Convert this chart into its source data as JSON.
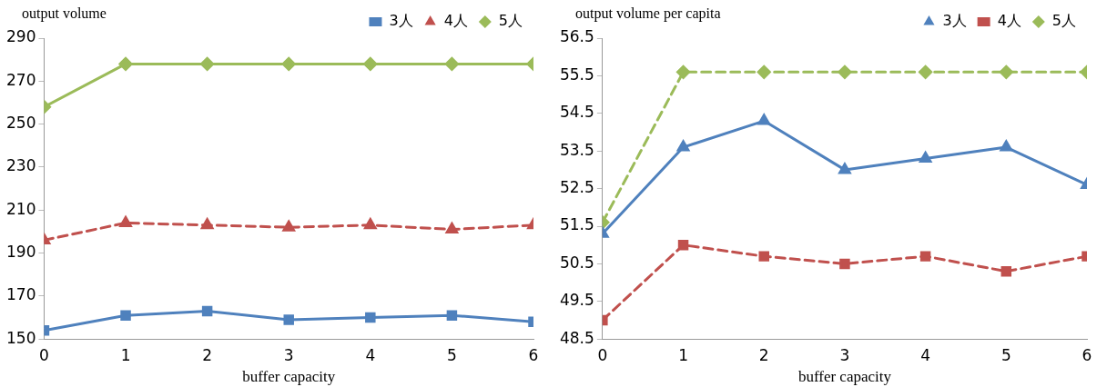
{
  "chart_data": [
    {
      "type": "line",
      "xlabel": "buffer capacity",
      "ylabel": "output volume",
      "x": [
        0,
        1,
        2,
        3,
        4,
        5,
        6
      ],
      "xlim": [
        0,
        6
      ],
      "xticks": [
        0,
        1,
        2,
        3,
        4,
        5,
        6
      ],
      "ylim": [
        150,
        290
      ],
      "yticks": [
        150,
        170,
        190,
        210,
        230,
        250,
        270,
        290
      ],
      "grid": false,
      "legend": "top",
      "series": [
        {
          "name": "3人",
          "color": "#4f81bd",
          "marker": "square",
          "line_style": "solid",
          "values": [
            154,
            161,
            163,
            159,
            160,
            161,
            158
          ]
        },
        {
          "name": "4人",
          "color": "#c0504d",
          "marker": "triangle",
          "line_style": "dashed",
          "values": [
            196,
            204,
            203,
            202,
            203,
            201,
            203
          ]
        },
        {
          "name": "5人",
          "color": "#9bbb59",
          "marker": "diamond",
          "line_style": "solid",
          "values": [
            258,
            278,
            278,
            278,
            278,
            278,
            278
          ]
        }
      ]
    },
    {
      "type": "line",
      "xlabel": "buffer capacity",
      "ylabel": "output volume per capita",
      "x": [
        0,
        1,
        2,
        3,
        4,
        5,
        6
      ],
      "xlim": [
        0,
        6
      ],
      "xticks": [
        0,
        1,
        2,
        3,
        4,
        5,
        6
      ],
      "ylim": [
        48.5,
        56.5
      ],
      "yticks": [
        48.5,
        49.5,
        50.5,
        51.5,
        52.5,
        53.5,
        54.5,
        55.5,
        56.5
      ],
      "grid": false,
      "legend": "top",
      "series": [
        {
          "name": "3人",
          "color": "#4f81bd",
          "marker": "triangle",
          "line_style": "solid",
          "values": [
            51.3,
            53.6,
            54.3,
            53.0,
            53.3,
            53.6,
            52.6
          ]
        },
        {
          "name": "4人",
          "color": "#c0504d",
          "marker": "square",
          "line_style": "dashed",
          "values": [
            49.0,
            51.0,
            50.7,
            50.5,
            50.7,
            50.3,
            50.7
          ]
        },
        {
          "name": "5人",
          "color": "#9bbb59",
          "marker": "diamond",
          "line_style": "dashed",
          "values": [
            51.6,
            55.6,
            55.6,
            55.6,
            55.6,
            55.6,
            55.6
          ]
        }
      ]
    }
  ]
}
